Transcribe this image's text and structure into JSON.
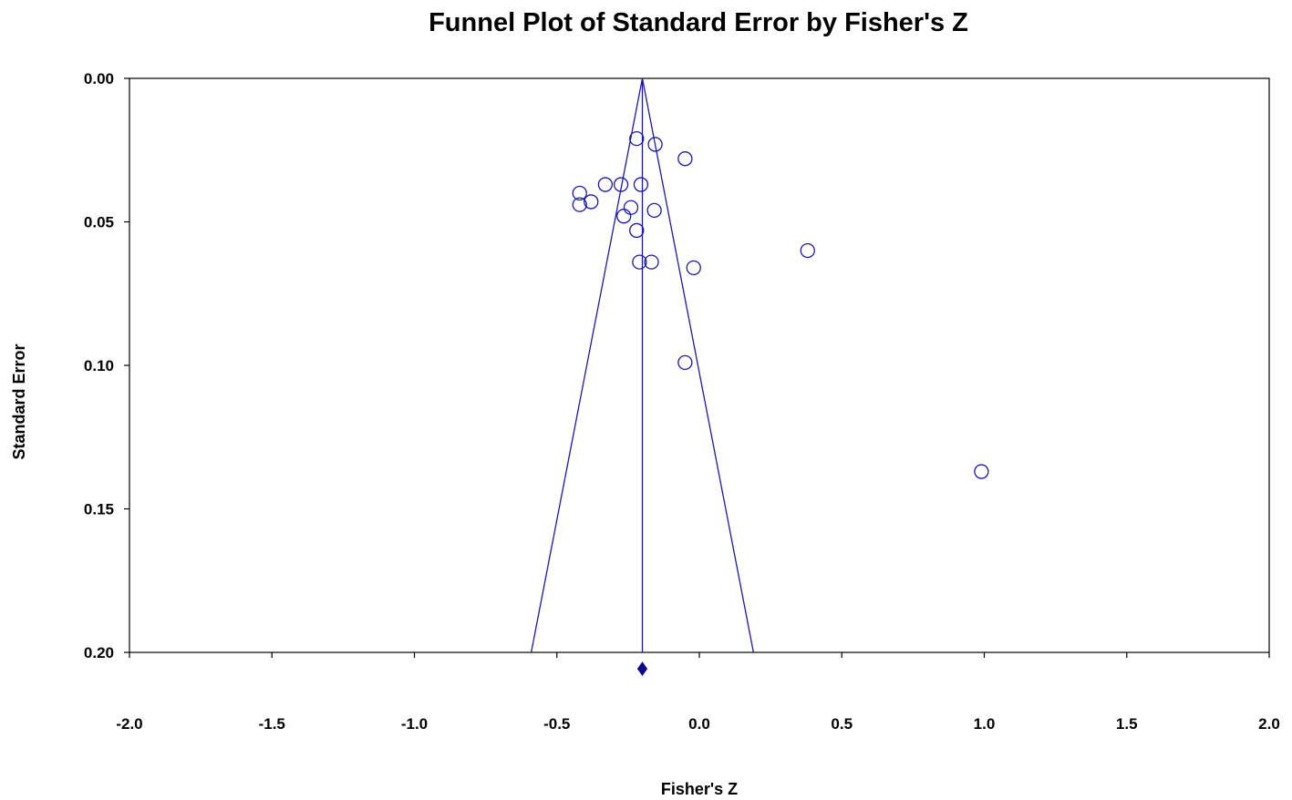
{
  "chart_data": {
    "type": "scatter",
    "title": "Funnel Plot of Standard Error by Fisher's Z",
    "xlabel": "Fisher's Z",
    "ylabel": "Standard Error",
    "xlim": [
      -2.0,
      2.0
    ],
    "ylim": [
      0.0,
      0.2
    ],
    "y_inverted": true,
    "x_ticks": [
      "-2.0",
      "-1.5",
      "-1.0",
      "-0.5",
      "0.0",
      "0.5",
      "1.0",
      "1.5",
      "2.0"
    ],
    "x_tick_values": [
      -2.0,
      -1.5,
      -1.0,
      -0.5,
      0.0,
      0.5,
      1.0,
      1.5,
      2.0
    ],
    "y_ticks": [
      "0.00",
      "0.05",
      "0.10",
      "0.15",
      "0.20"
    ],
    "y_tick_values": [
      0.0,
      0.05,
      0.1,
      0.15,
      0.2
    ],
    "grid": false,
    "pooled_estimate": -0.2,
    "funnel_bottom": [
      -0.59,
      0.2
    ],
    "points": [
      {
        "x": -0.22,
        "y": 0.021
      },
      {
        "x": -0.155,
        "y": 0.023
      },
      {
        "x": -0.05,
        "y": 0.028
      },
      {
        "x": -0.33,
        "y": 0.037
      },
      {
        "x": -0.275,
        "y": 0.037
      },
      {
        "x": -0.205,
        "y": 0.037
      },
      {
        "x": -0.42,
        "y": 0.04
      },
      {
        "x": -0.42,
        "y": 0.044
      },
      {
        "x": -0.38,
        "y": 0.043
      },
      {
        "x": -0.24,
        "y": 0.045
      },
      {
        "x": -0.158,
        "y": 0.046
      },
      {
        "x": -0.265,
        "y": 0.048
      },
      {
        "x": -0.22,
        "y": 0.053
      },
      {
        "x": 0.38,
        "y": 0.06
      },
      {
        "x": -0.21,
        "y": 0.064
      },
      {
        "x": -0.168,
        "y": 0.064
      },
      {
        "x": -0.02,
        "y": 0.066
      },
      {
        "x": -0.05,
        "y": 0.099
      },
      {
        "x": 0.99,
        "y": 0.137
      }
    ],
    "colors": {
      "series": "#1a1aa6",
      "diamond": "#0a0a8c",
      "axis": "#000000"
    }
  }
}
